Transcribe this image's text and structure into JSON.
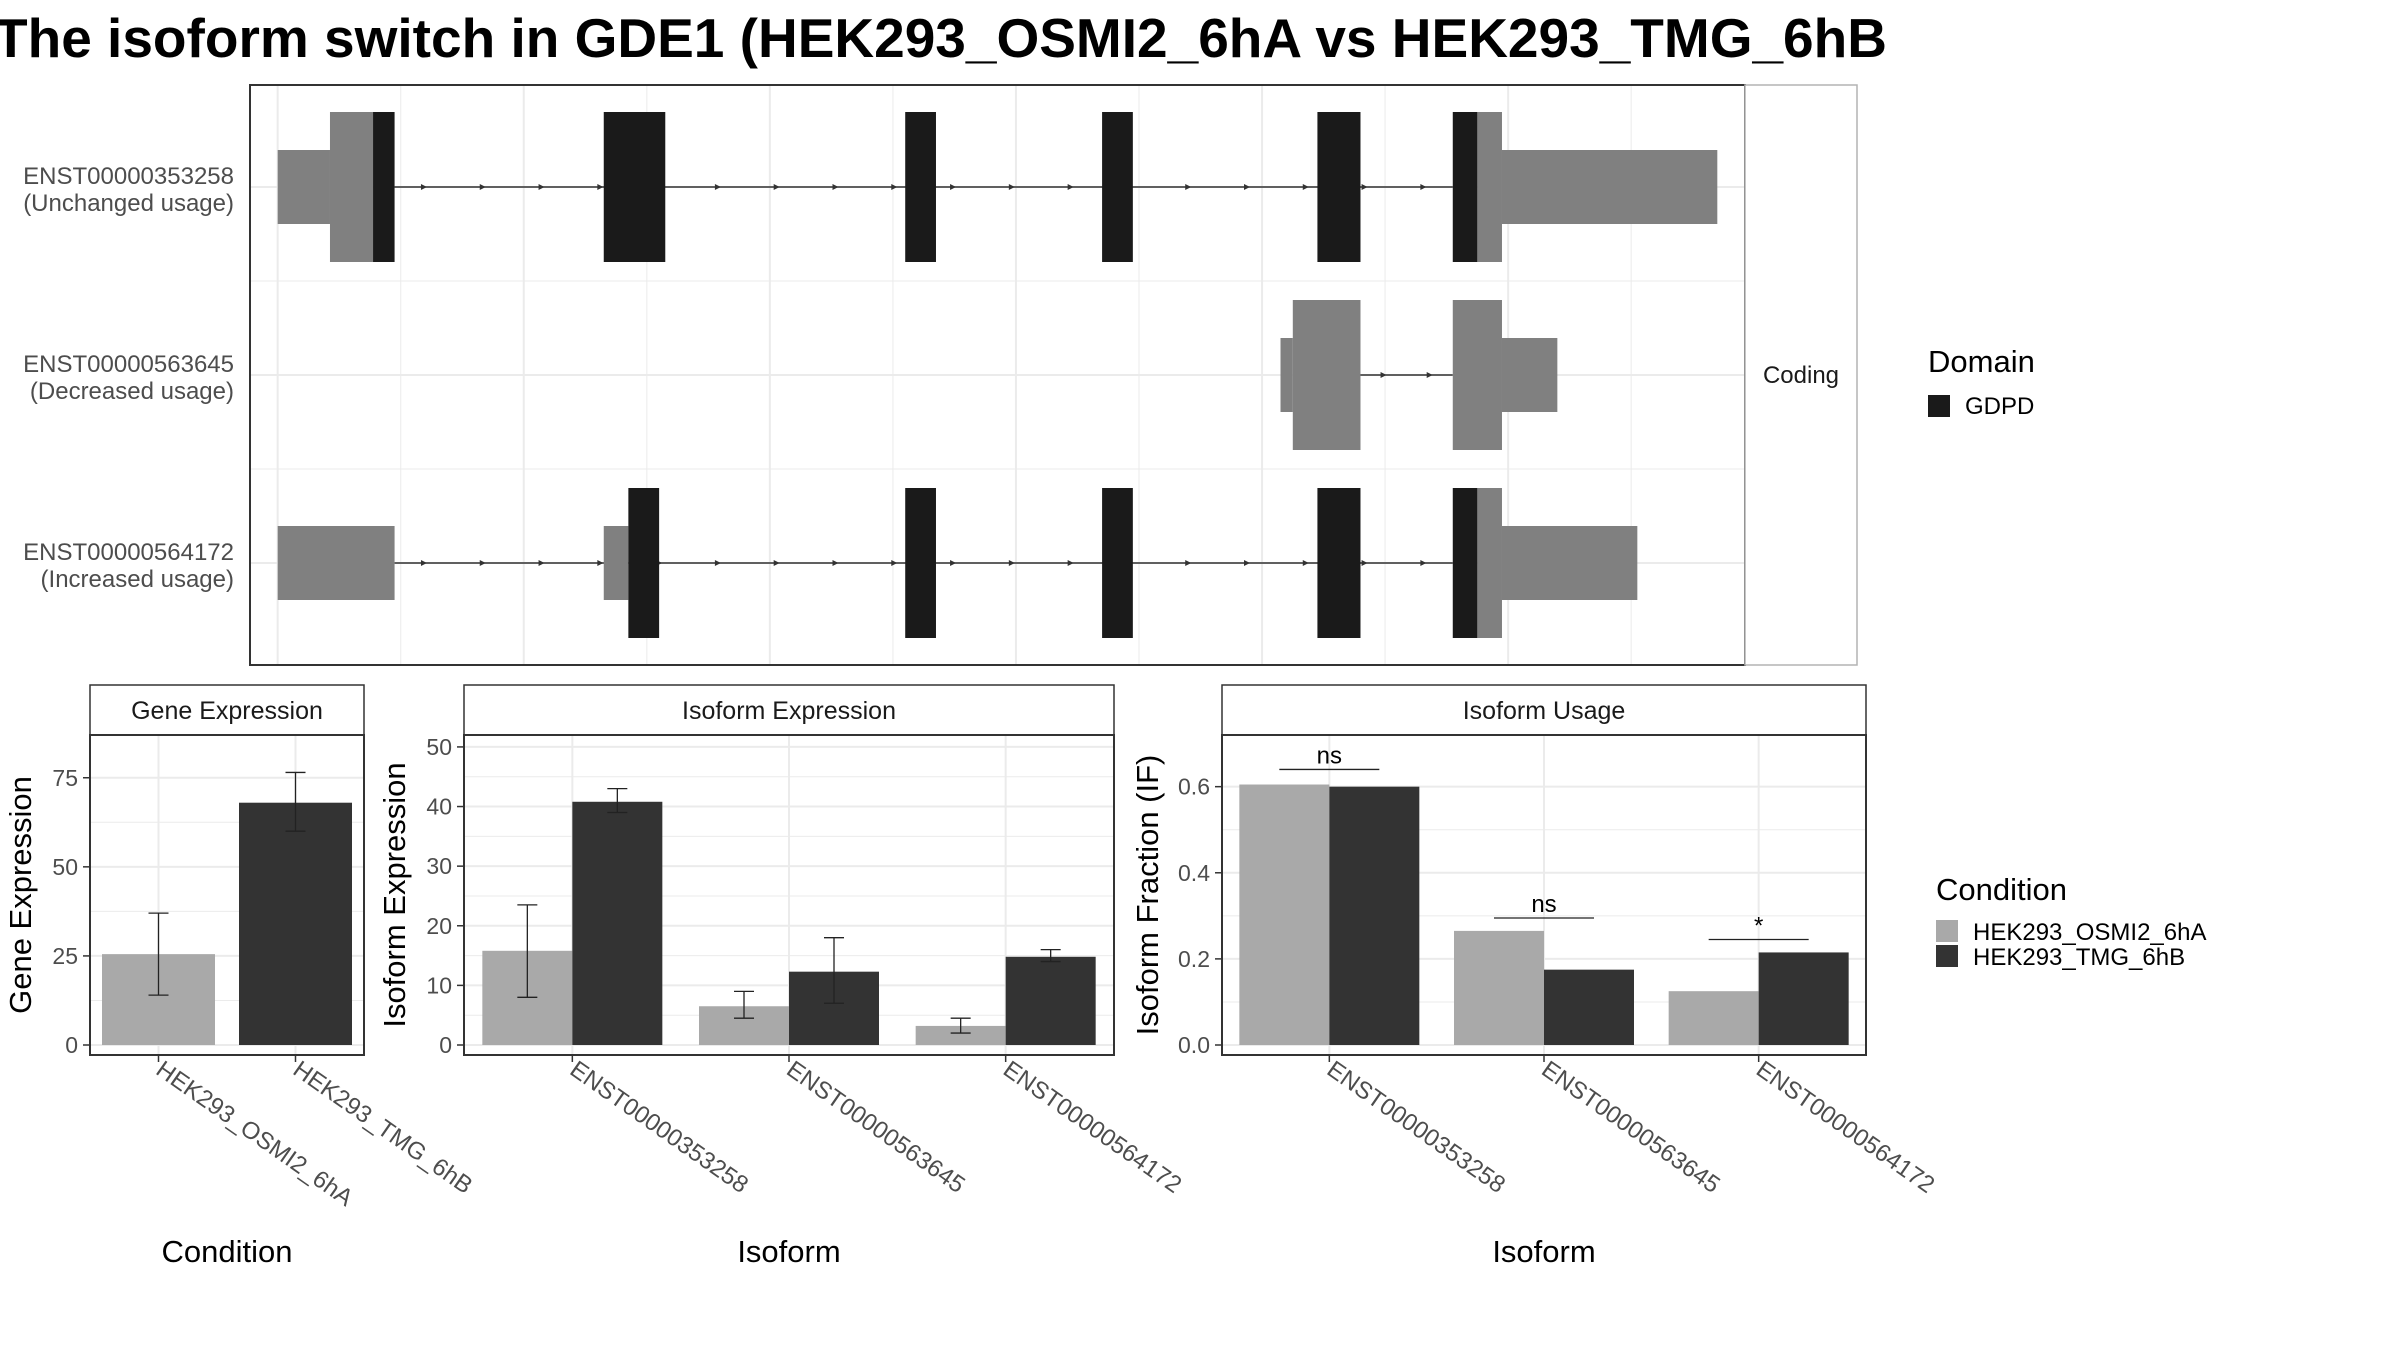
{
  "title": "The isoform switch in GDE1 (HEK293_OSMI2_6hA vs HEK293_TMG_6hB",
  "colors": {
    "light": "#a9a9a9",
    "dark": "#333333",
    "utr": "#808080",
    "cds": "#1a1a1a",
    "grid": "#ebebeb",
    "strip_bg": "#ffffff",
    "frame": "#333333"
  },
  "chart_data": [
    {
      "type": "gene-structure",
      "strip_label": "Coding",
      "transcripts": [
        {
          "id": "ENST00000353258",
          "label": "(Unchanged usage)",
          "exons": [
            {
              "start": 1,
              "end": 1.85,
              "kind": "utr"
            },
            {
              "start": 1.85,
              "end": 2.55,
              "kind": "utr-tall"
            },
            {
              "start": 2.55,
              "end": 2.9,
              "kind": "cds"
            },
            {
              "start": 6.3,
              "end": 7.3,
              "kind": "cds"
            },
            {
              "start": 11.2,
              "end": 11.7,
              "kind": "cds"
            },
            {
              "start": 14.4,
              "end": 14.9,
              "kind": "cds"
            },
            {
              "start": 17.9,
              "end": 18.6,
              "kind": "cds"
            },
            {
              "start": 20.1,
              "end": 20.5,
              "kind": "cds"
            },
            {
              "start": 20.5,
              "end": 20.9,
              "kind": "utr-tall"
            },
            {
              "start": 20.9,
              "end": 24.4,
              "kind": "utr"
            }
          ],
          "intron": [
            2.9,
            20.1
          ]
        },
        {
          "id": "ENST00000563645",
          "label": "(Decreased usage)",
          "exons": [
            {
              "start": 17.3,
              "end": 17.5,
              "kind": "utr"
            },
            {
              "start": 17.5,
              "end": 18.6,
              "kind": "utr-tall"
            },
            {
              "start": 20.1,
              "end": 20.9,
              "kind": "utr-tall"
            },
            {
              "start": 20.9,
              "end": 21.8,
              "kind": "utr"
            }
          ],
          "intron": [
            18.6,
            20.1
          ]
        },
        {
          "id": "ENST00000564172",
          "label": "(Increased usage)",
          "exons": [
            {
              "start": 1,
              "end": 2.9,
              "kind": "utr"
            },
            {
              "start": 6.3,
              "end": 6.7,
              "kind": "utr"
            },
            {
              "start": 6.7,
              "end": 7.2,
              "kind": "cds"
            },
            {
              "start": 11.2,
              "end": 11.7,
              "kind": "cds"
            },
            {
              "start": 14.4,
              "end": 14.9,
              "kind": "cds"
            },
            {
              "start": 17.9,
              "end": 18.6,
              "kind": "cds"
            },
            {
              "start": 20.1,
              "end": 20.5,
              "kind": "cds"
            },
            {
              "start": 20.5,
              "end": 20.9,
              "kind": "utr-tall"
            },
            {
              "start": 20.9,
              "end": 23.1,
              "kind": "utr"
            }
          ],
          "intron": [
            2.9,
            20.1
          ]
        }
      ],
      "legend": {
        "title": "Domain",
        "items": [
          {
            "name": "GDPD",
            "color": "#1a1a1a"
          }
        ]
      }
    },
    {
      "type": "bar",
      "strip_title": "Gene Expression",
      "xlabel": "Condition",
      "ylabel": "Gene Expression",
      "ylim": [
        0,
        87
      ],
      "yticks": [
        0,
        25,
        50,
        75
      ],
      "categories": [
        "HEK293_OSMI2_6hA",
        "HEK293_TMG_6hB"
      ],
      "values": [
        25.5,
        68
      ],
      "errors": [
        [
          14,
          37
        ],
        [
          60,
          76.5
        ]
      ]
    },
    {
      "type": "bar",
      "strip_title": "Isoform Expression",
      "xlabel": "Isoform",
      "ylabel": "Isoform Expression",
      "ylim": [
        0,
        52
      ],
      "yticks": [
        0,
        10,
        20,
        30,
        40,
        50
      ],
      "categories": [
        "ENST00000353258",
        "ENST00000563645",
        "ENST00000564172"
      ],
      "series": [
        {
          "name": "HEK293_OSMI2_6hA",
          "values": [
            15.8,
            6.5,
            3.2
          ],
          "errors": [
            [
              8,
              23.5
            ],
            [
              4.5,
              9
            ],
            [
              2,
              4.5
            ]
          ]
        },
        {
          "name": "HEK293_TMG_6hB",
          "values": [
            40.8,
            12.3,
            14.8
          ],
          "errors": [
            [
              39,
              43
            ],
            [
              7,
              18
            ],
            [
              14,
              16
            ]
          ]
        }
      ]
    },
    {
      "type": "bar",
      "strip_title": "Isoform Usage",
      "xlabel": "Isoform",
      "ylabel": "Isoform Fraction (IF)",
      "ylim": [
        0,
        0.72
      ],
      "yticks": [
        0.0,
        0.2,
        0.4,
        0.6
      ],
      "yticklabels": [
        "0.0",
        "0.2",
        "0.4",
        "0.6"
      ],
      "categories": [
        "ENST00000353258",
        "ENST00000563645",
        "ENST00000564172"
      ],
      "series": [
        {
          "name": "HEK293_OSMI2_6hA",
          "values": [
            0.605,
            0.265,
            0.125
          ]
        },
        {
          "name": "HEK293_TMG_6hB",
          "values": [
            0.6,
            0.175,
            0.215
          ]
        }
      ],
      "annotations": [
        {
          "category": 0,
          "text": "ns",
          "y": 0.64
        },
        {
          "category": 1,
          "text": "ns",
          "y": 0.295
        },
        {
          "category": 2,
          "text": "*",
          "y": 0.245
        }
      ]
    }
  ],
  "condition_legend": {
    "title": "Condition",
    "items": [
      {
        "name": "HEK293_OSMI2_6hA",
        "color": "#a9a9a9"
      },
      {
        "name": "HEK293_TMG_6hB",
        "color": "#333333"
      }
    ]
  }
}
